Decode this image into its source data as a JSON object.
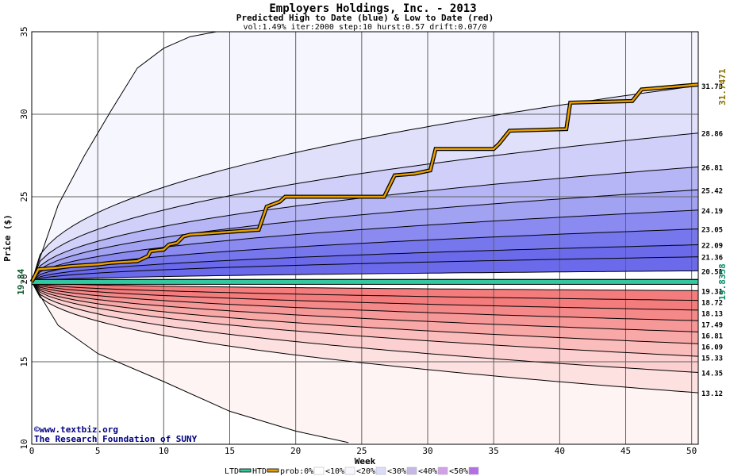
{
  "chart_data": {
    "type": "area",
    "title": "Employers Holdings, Inc. - 2013",
    "subtitle": "Predicted High to Date (blue) &  Low to Date (red)",
    "params": "vol:1.49% iter:2000 step:10 hurst:0.57 drift:0.07/0",
    "xlabel": "Week",
    "ylabel": "Price ($)",
    "xlim": [
      0,
      50.5
    ],
    "ylim": [
      10,
      35
    ],
    "xticks": [
      0,
      5,
      10,
      15,
      20,
      25,
      30,
      35,
      40,
      45,
      50
    ],
    "yticks": [
      10,
      15,
      20,
      25,
      30,
      35
    ],
    "grid": true,
    "start_price": 19.84,
    "start_label": "19.84",
    "ltd_price": 19.8358,
    "ltd_label": "19.8358",
    "htd_price": 31.7471,
    "htd_label": "31.7471",
    "high_band_labels": [
      "31.73",
      "28.86",
      "26.81",
      "25.42",
      "24.19",
      "23.05",
      "22.09",
      "21.36",
      "20.51"
    ],
    "high_band_ends": [
      31.73,
      28.86,
      26.81,
      25.42,
      24.19,
      23.05,
      22.09,
      21.36,
      20.51
    ],
    "low_band_labels": [
      "19.31",
      "18.72",
      "18.13",
      "17.49",
      "16.81",
      "16.09",
      "15.33",
      "14.35",
      "13.12"
    ],
    "low_band_ends": [
      19.31,
      18.72,
      18.13,
      17.49,
      16.81,
      16.09,
      15.33,
      14.35,
      13.12
    ],
    "outer_high_curve": {
      "x": [
        0,
        2,
        4,
        6,
        8,
        10,
        12,
        14
      ],
      "y": [
        19.84,
        24.5,
        27.5,
        30.2,
        32.8,
        34.0,
        34.7,
        35.0
      ]
    },
    "outer_low_curve": {
      "x": [
        0,
        2,
        5,
        10,
        15,
        20,
        24
      ],
      "y": [
        19.84,
        17.2,
        15.5,
        13.8,
        12.0,
        10.8,
        10.1
      ]
    },
    "htd_path": {
      "x": [
        0,
        0.5,
        2,
        3,
        5,
        6,
        8,
        8.8,
        9,
        10,
        10.4,
        11,
        11.5,
        12,
        17.2,
        17.8,
        18.8,
        19.2,
        26.7,
        27.5,
        29,
        30.2,
        30.6,
        35,
        35.4,
        35.8,
        36.2,
        40.5,
        40.8,
        45.5,
        46.2,
        50.5
      ],
      "y": [
        19.84,
        20.6,
        20.7,
        20.8,
        20.9,
        21.0,
        21.1,
        21.4,
        21.7,
        21.8,
        22.1,
        22.2,
        22.6,
        22.7,
        23.0,
        24.4,
        24.7,
        25.0,
        25.0,
        26.3,
        26.4,
        26.6,
        27.9,
        27.9,
        28.2,
        28.6,
        29.0,
        29.1,
        30.7,
        30.8,
        31.5,
        31.8
      ]
    },
    "legend": [
      "LTD",
      "HTD",
      "prob:0%",
      "<10%",
      "<20%",
      "<30%",
      "<40%",
      "<50%"
    ],
    "legend_colors": [
      "#32c8a0",
      "#e8a000",
      "#ffffff",
      "#f6f6ff",
      "#dcdcfa",
      "#c6b8e6",
      "#d2a0e8",
      "#b46ee6"
    ],
    "watermark": [
      "©www.textbiz.org",
      "The Research Foundation of SUNY"
    ]
  },
  "colors": {
    "blue_bands": [
      "#f6f6fe",
      "#e0e0fb",
      "#cfcff9",
      "#b6b6f6",
      "#a2a2f3",
      "#8a8af0",
      "#7676ed",
      "#6a6aeb"
    ],
    "red_bands": [
      "#fff4f4",
      "#fde0e0",
      "#fcd0d0",
      "#fbbcbc",
      "#f9a8a8",
      "#f79898",
      "#f58888",
      "#f47c7c"
    ],
    "ltd_color": "#32c8a0",
    "htd_color": "#e8a000",
    "start_label_color": "#0a5a2a",
    "htd_label_color": "#8a7000",
    "ltd_label_color": "#0a8a6a",
    "watermark_color": "#000080"
  }
}
